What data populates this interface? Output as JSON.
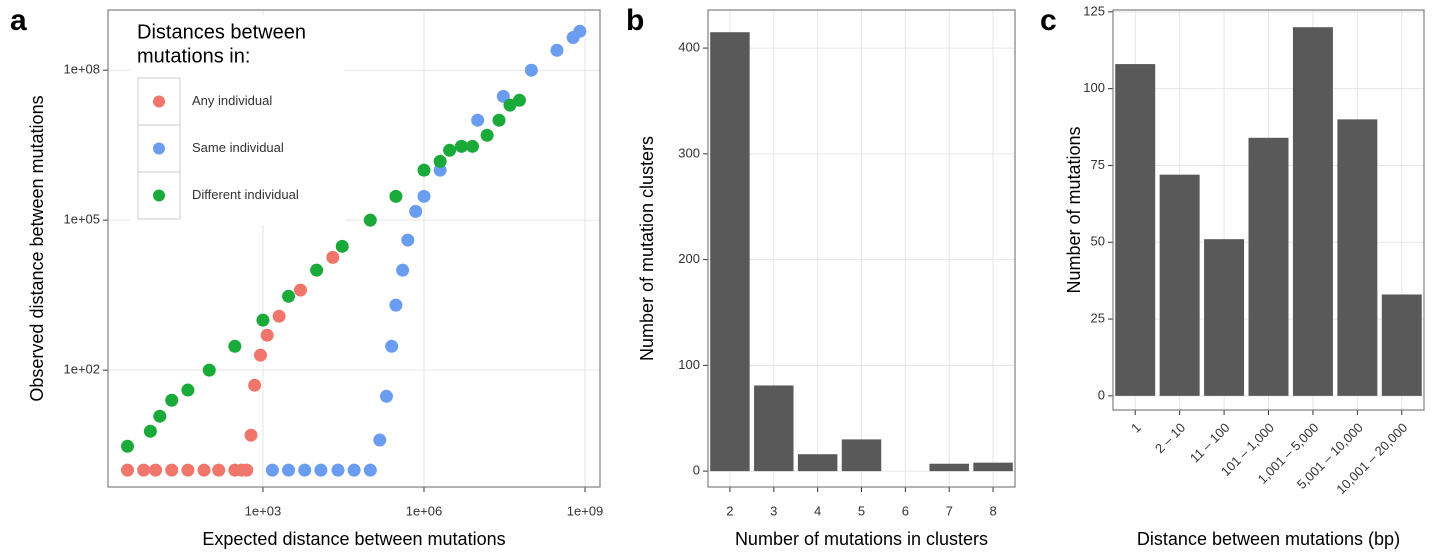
{
  "chart_data": [
    {
      "type": "scatter",
      "panel_label": "a",
      "x_label": "Expected distance between mutations",
      "y_label": "Observed distance between mutations",
      "xscale": "log",
      "yscale": "log",
      "grid": true,
      "xlim": [
        1.3,
        1900000000
      ],
      "ylim": [
        0.46,
        1600000000
      ],
      "xticks": [
        {
          "value": 1000,
          "label": "1e+03"
        },
        {
          "value": 1000000,
          "label": "1e+06"
        },
        {
          "value": 1000000000,
          "label": "1e+09"
        }
      ],
      "yticks": [
        {
          "value": 100,
          "label": "1e+02"
        },
        {
          "value": 100000,
          "label": "1e+05"
        },
        {
          "value": 100000000,
          "label": "1e+08"
        }
      ],
      "legend_title": [
        "Distances between",
        "mutations in:"
      ],
      "legend_position": "top-left",
      "series": [
        {
          "name": "Any individual",
          "color": "#f0766c",
          "x": [
            3,
            6,
            10,
            20,
            40,
            80,
            150,
            300,
            400,
            500,
            600,
            700,
            900,
            1200,
            2000,
            5000,
            20000
          ],
          "values": [
            1,
            1,
            1,
            1,
            1,
            1,
            1,
            1,
            1,
            1,
            5,
            50,
            200,
            500,
            1200,
            4000,
            18000
          ]
        },
        {
          "name": "Same individual",
          "color": "#6a9cf0",
          "x": [
            1500,
            3000,
            6000,
            12000,
            25000,
            50000,
            100000,
            150000,
            200000,
            250000,
            300000,
            400000,
            500000,
            700000,
            1000000,
            2000000,
            5000000,
            10000000,
            30000000,
            100000000,
            300000000,
            600000000,
            800000000
          ],
          "values": [
            1,
            1,
            1,
            1,
            1,
            1,
            1,
            4,
            30,
            300,
            2000,
            10000,
            40000,
            150000,
            300000,
            1000000,
            3000000,
            10000000,
            30000000,
            100000000,
            250000000,
            450000000,
            600000000
          ]
        },
        {
          "name": "Different individual",
          "color": "#1aaa3a",
          "x": [
            3,
            8,
            12,
            20,
            40,
            100,
            300,
            1000,
            3000,
            10000,
            30000,
            100000,
            300000,
            1000000,
            2000000,
            3000000,
            5000000,
            8000000,
            15000000,
            25000000,
            40000000,
            60000000
          ],
          "values": [
            3,
            6,
            12,
            25,
            40,
            100,
            300,
            1000,
            3000,
            10000,
            30000,
            100000,
            300000,
            1000000,
            1500000,
            2500000,
            3000000,
            3000000,
            5000000,
            10000000,
            20000000,
            25000000
          ]
        }
      ]
    },
    {
      "type": "bar",
      "panel_label": "b",
      "x_label": "Number of mutations in clusters",
      "y_label": "Number of mutation clusters",
      "grid": true,
      "color": "#595959",
      "categories": [
        "2",
        "3",
        "4",
        "5",
        "6",
        "7",
        "8"
      ],
      "values": [
        415,
        81,
        16,
        30,
        0,
        7,
        8
      ],
      "ylim": [
        -15,
        436
      ],
      "yticks": [
        0,
        100,
        200,
        300,
        400
      ]
    },
    {
      "type": "bar",
      "panel_label": "c",
      "x_label": "Distance between mutations (bp)",
      "y_label": "Number of mutations",
      "grid": true,
      "color": "#595959",
      "rotate_x_labels": true,
      "categories": [
        "1",
        "2 – 10",
        "11 – 100",
        "101 – 1,000",
        "1,001 – 5,000",
        "5,001 – 10,000",
        "10,001 – 20,000"
      ],
      "values": [
        108,
        72,
        51,
        84,
        120,
        90,
        33
      ],
      "ylim": [
        -4.6,
        125.6
      ],
      "yticks": [
        0,
        25,
        50,
        75,
        100,
        125
      ]
    }
  ]
}
